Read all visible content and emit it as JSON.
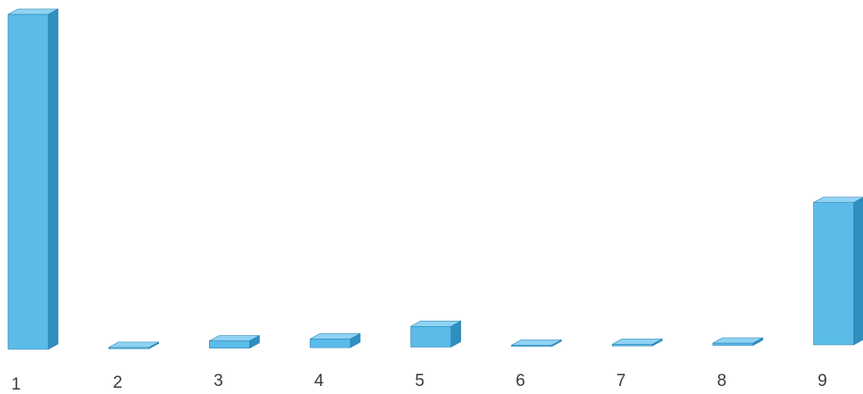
{
  "chart_data": {
    "type": "bar",
    "style": "3d-column",
    "categories": [
      "1",
      "2",
      "3",
      "4",
      "5",
      "6",
      "7",
      "8",
      "9"
    ],
    "values": [
      100,
      0.2,
      2.2,
      2.6,
      6.2,
      0.3,
      0.5,
      0.7,
      42.5
    ],
    "title": "",
    "xlabel": "",
    "ylabel": "",
    "ylim": [
      0,
      100
    ],
    "grid": false,
    "legend": "none",
    "colors": {
      "front": "#5bbce9",
      "top": "#8fd3f4",
      "side": "#2f8fbf",
      "edge": "#2a7fae"
    }
  }
}
